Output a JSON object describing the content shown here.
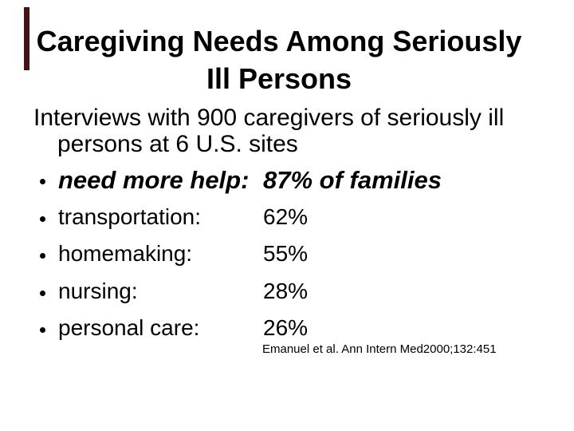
{
  "slide": {
    "accent_color": "#441414",
    "title_lines": [
      "Caregiving Needs Among Seriously",
      "Ill Persons"
    ],
    "intro_lines": [
      "Interviews with 900 caregivers of seriously ill",
      "persons at 6 U.S. sites"
    ],
    "bullets": [
      {
        "label": "need more help:",
        "value": "87% of families",
        "emphasis": true
      },
      {
        "label": "transportation:",
        "value": "62%",
        "emphasis": false
      },
      {
        "label": "homemaking:",
        "value": "55%",
        "emphasis": false
      },
      {
        "label": "nursing:",
        "value": "28%",
        "emphasis": false
      },
      {
        "label": "personal care:",
        "value": "26%",
        "emphasis": false
      }
    ],
    "citation": "Emanuel et al. Ann Intern Med2000;132:451"
  }
}
